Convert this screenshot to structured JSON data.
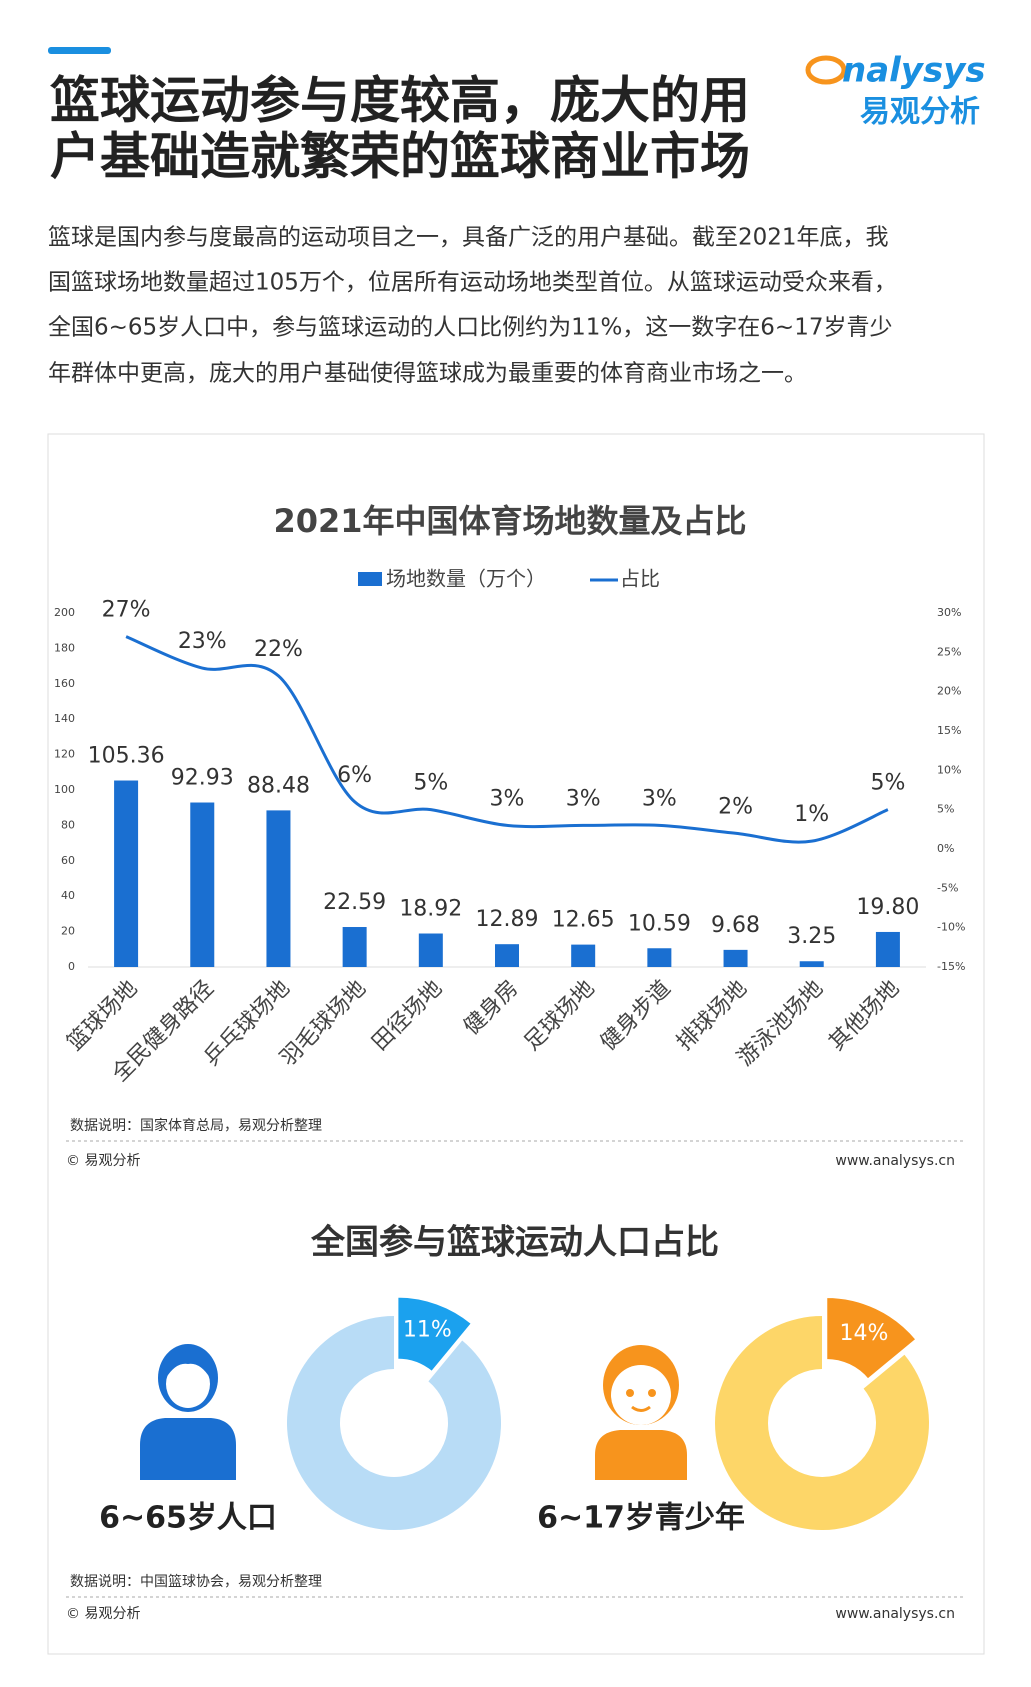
{
  "header": {
    "title_lines": [
      "篮球运动参与度较高，庞大的用",
      "户基础造就繁荣的篮球商业市场"
    ],
    "logo": "nalysys",
    "logo_cn": "易观分析",
    "paragraph_lines": [
      "篮球是国内参与度最高的运动项目之一，具备广泛的用户基础。截至2021年底，我",
      "国篮球场地数量超过105万个，位居所有运动场地类型首位。从篮球运动受众来看，",
      "全国6~65岁人口中，参与篮球运动的人口比例约为11%，这一数字在6~17岁青少",
      "年群体中更高，庞大的用户基础使得篮球成为最重要的体育商业市场之一。"
    ]
  },
  "chart_data": [
    {
      "type": "bar",
      "title": "2021年中国体育场地数量及占比",
      "categories": [
        "篮球场地",
        "全民健身路径",
        "乒乓球场地",
        "羽毛球场地",
        "田径场地",
        "健身房",
        "足球场地",
        "健身步道",
        "排球场地",
        "游泳池场地",
        "其他场地"
      ],
      "series": [
        {
          "name": "场地数量（万个）",
          "color": "#1a6fd1",
          "values": [
            105.36,
            92.93,
            88.48,
            22.59,
            18.92,
            12.89,
            12.65,
            10.59,
            9.68,
            3.25,
            19.8
          ],
          "value_labels": [
            "105.36",
            "92.93",
            "88.48",
            "22.59",
            "18.92",
            "12.89",
            "12.65",
            "10.59",
            "9.68",
            "3.25",
            "19.80"
          ]
        },
        {
          "name": "占比",
          "type": "line",
          "axis": "y2",
          "color": "#1a6fd1",
          "values": [
            27,
            23,
            22,
            6,
            5,
            3,
            3,
            3,
            2,
            1,
            5
          ],
          "value_labels": [
            "27%",
            "23%",
            "22%",
            "6%",
            "5%",
            "3%",
            "3%",
            "3%",
            "2%",
            "1%",
            "5%"
          ]
        }
      ],
      "ylim": [
        0,
        200
      ],
      "yticks": [
        0,
        20,
        40,
        60,
        80,
        100,
        120,
        140,
        160,
        180,
        200
      ],
      "y2lim": [
        -15,
        30
      ],
      "y2ticks": [
        {
          "value": -15,
          "label": "-15%"
        },
        {
          "value": -10,
          "label": "-10%"
        },
        {
          "value": -5,
          "label": "-5%"
        },
        {
          "value": 0,
          "label": "0%"
        },
        {
          "value": 5,
          "label": "5%"
        },
        {
          "value": 10,
          "label": "10%"
        },
        {
          "value": 15,
          "label": "15%"
        },
        {
          "value": 20,
          "label": "20%"
        },
        {
          "value": 25,
          "label": "25%"
        },
        {
          "value": 30,
          "label": "30%"
        }
      ],
      "grid": false,
      "source": "数据说明：国家体育总局，易观分析整理",
      "copyright": "© 易观分析",
      "website": "www.analysys.cn"
    },
    {
      "type": "donut",
      "title": "全国参与篮球运动人口占比",
      "pies": [
        {
          "label": "6~65岁人口",
          "value": 11,
          "value_label": "11%",
          "color": "#1ba1ee",
          "rest_color": "#b8dcf6"
        },
        {
          "label": "6~17岁青少年",
          "value": 14,
          "value_label": "14%",
          "color": "#f7941d",
          "rest_color": "#fdd668"
        }
      ],
      "source": "数据说明：中国篮球协会，易观分析整理",
      "copyright": "© 易观分析",
      "website": "www.analysys.cn"
    }
  ]
}
